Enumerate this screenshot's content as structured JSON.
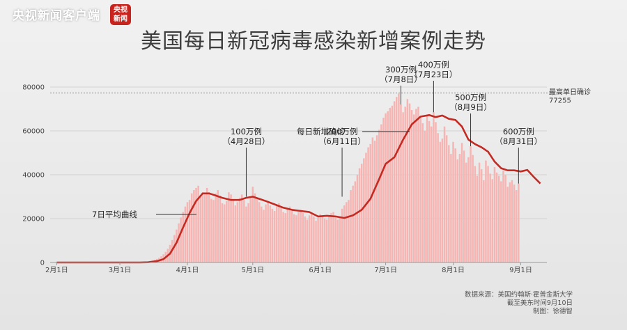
{
  "brand": {
    "name": "央视新闻客户端",
    "badge_top": "央视",
    "badge_bottom": "新闻"
  },
  "title": "美国每日新冠病毒感染新增案例走势",
  "colors": {
    "bar": "#f6b4b2",
    "line": "#c42a22",
    "ref": "#8a8a8a"
  },
  "chart_data": {
    "type": "bar",
    "title": "美国每日新冠病毒感染新增案例走势",
    "xlabel": "",
    "ylabel": "",
    "ylim": [
      0,
      80000
    ],
    "y_ticks": [
      0,
      20000,
      40000,
      60000,
      80000
    ],
    "x_ticks": [
      {
        "label": "2月1日",
        "day": 0
      },
      {
        "label": "3月1日",
        "day": 29
      },
      {
        "label": "4月1日",
        "day": 60
      },
      {
        "label": "5月1日",
        "day": 90
      },
      {
        "label": "6月1日",
        "day": 121
      },
      {
        "label": "7月1日",
        "day": 151
      },
      {
        "label": "8月1日",
        "day": 182
      },
      {
        "label": "9月1日",
        "day": 213
      }
    ],
    "x_range_days": [
      -3,
      225
    ],
    "series": [
      {
        "name": "每日新增确诊",
        "type": "bar"
      },
      {
        "name": "7日平均曲线",
        "type": "line"
      }
    ],
    "avg_points": [
      [
        0,
        0
      ],
      [
        10,
        0
      ],
      [
        20,
        0
      ],
      [
        30,
        0
      ],
      [
        38,
        0
      ],
      [
        42,
        100
      ],
      [
        46,
        600
      ],
      [
        49,
        1500
      ],
      [
        52,
        4000
      ],
      [
        55,
        9000
      ],
      [
        58,
        16000
      ],
      [
        61,
        22500
      ],
      [
        64,
        28000
      ],
      [
        67,
        31500
      ],
      [
        70,
        31500
      ],
      [
        73,
        30500
      ],
      [
        76,
        29500
      ],
      [
        80,
        28500
      ],
      [
        84,
        28500
      ],
      [
        87,
        29500
      ],
      [
        90,
        30000
      ],
      [
        93,
        29000
      ],
      [
        96,
        28000
      ],
      [
        100,
        26500
      ],
      [
        104,
        25000
      ],
      [
        108,
        24000
      ],
      [
        112,
        23500
      ],
      [
        116,
        23000
      ],
      [
        120,
        21000
      ],
      [
        124,
        21300
      ],
      [
        128,
        21000
      ],
      [
        132,
        20300
      ],
      [
        136,
        21500
      ],
      [
        140,
        24000
      ],
      [
        144,
        29000
      ],
      [
        148,
        38000
      ],
      [
        151,
        45000
      ],
      [
        155,
        48000
      ],
      [
        159,
        56000
      ],
      [
        163,
        63000
      ],
      [
        167,
        66500
      ],
      [
        171,
        67200
      ],
      [
        174,
        66300
      ],
      [
        177,
        67000
      ],
      [
        180,
        65500
      ],
      [
        183,
        65000
      ],
      [
        186,
        62000
      ],
      [
        189,
        56000
      ],
      [
        192,
        54000
      ],
      [
        195,
        52500
      ],
      [
        198,
        50500
      ],
      [
        201,
        46000
      ],
      [
        204,
        43000
      ],
      [
        207,
        42000
      ],
      [
        210,
        42000
      ],
      [
        213,
        41500
      ],
      [
        216,
        42200
      ],
      [
        219,
        39000
      ],
      [
        222,
        36000
      ]
    ],
    "daily_cases": [
      0,
      0,
      0,
      0,
      0,
      0,
      0,
      0,
      0,
      0,
      0,
      0,
      0,
      0,
      0,
      0,
      0,
      0,
      0,
      0,
      0,
      0,
      0,
      0,
      0,
      0,
      0,
      0,
      0,
      0,
      0,
      0,
      0,
      0,
      0,
      0,
      0,
      0,
      0,
      100,
      200,
      300,
      500,
      700,
      900,
      1200,
      1600,
      2100,
      2800,
      3700,
      4800,
      6200,
      8000,
      10200,
      12500,
      15000,
      17800,
      20500,
      23000,
      25500,
      27500,
      28500,
      31500,
      33000,
      34000,
      35000,
      30000,
      32000,
      31000,
      34000,
      32000,
      29000,
      28500,
      31500,
      33000,
      30500,
      27000,
      26500,
      28000,
      32000,
      31000,
      28500,
      26000,
      27500,
      29500,
      31000,
      28500,
      25500,
      27000,
      29500,
      34500,
      31500,
      29000,
      27500,
      25500,
      24000,
      26500,
      28000,
      26000,
      24500,
      23500,
      26000,
      27000,
      25000,
      23000,
      22500,
      24500,
      25500,
      23500,
      22000,
      21500,
      23000,
      24000,
      22500,
      21000,
      19500,
      21500,
      22500,
      21000,
      19000,
      20500,
      22000,
      21500,
      20000,
      19500,
      21000,
      22500,
      23000,
      20500,
      19500,
      21000,
      24500,
      26000,
      27500,
      28500,
      33000,
      35000,
      37000,
      40000,
      43000,
      45000,
      47500,
      50000,
      52500,
      54000,
      57000,
      55500,
      58000,
      60500,
      63000,
      66000,
      68000,
      69000,
      70500,
      71500,
      73500,
      75500,
      77000,
      72000,
      68500,
      71000,
      74500,
      72500,
      69500,
      67500,
      70000,
      71000,
      66500,
      63500,
      60000,
      67000,
      64500,
      62000,
      68500,
      64000,
      59000,
      55000,
      56500,
      62000,
      58000,
      53500,
      49500,
      55000,
      52000,
      47000,
      49500,
      54500,
      51000,
      45500,
      48000,
      53000,
      49000,
      44000,
      39500,
      45500,
      42500,
      37500,
      46500,
      44000,
      40500,
      38000,
      43500,
      41000,
      39500,
      37000,
      42000,
      40000,
      34500,
      36500,
      37500,
      35500,
      33000,
      36000
    ],
    "reference_line": {
      "value": 77255,
      "label": "最高单日确诊",
      "value_label": "77255"
    },
    "annotations": [
      {
        "text": "100万例",
        "text2": "（4月28日）",
        "day": 87
      },
      {
        "text": "200万例",
        "text2": "（6月11日）",
        "day": 131
      },
      {
        "text": "300万例",
        "text2": "（7月8日）",
        "day": 158
      },
      {
        "text": "400万例",
        "text2": "（7月23日）",
        "day": 173
      },
      {
        "text": "500万例",
        "text2": "（8月9日）",
        "day": 190
      },
      {
        "text": "600万例",
        "text2": "（8月31日）",
        "day": 212
      }
    ],
    "series_labels": [
      {
        "text": "每日新增确诊"
      },
      {
        "text": "7日平均曲线"
      }
    ]
  },
  "source": {
    "line1": "数据来源：美国约翰斯·霍普金斯大学",
    "line2": "截至美东时间9月10日",
    "line3": "制图：徐德智"
  }
}
